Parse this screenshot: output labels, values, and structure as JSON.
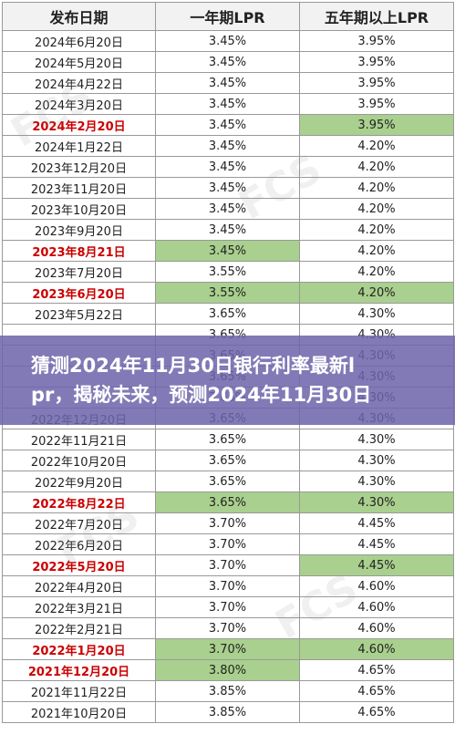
{
  "table": {
    "headers": [
      "发布日期",
      "一年期LPR",
      "五年期以上LPR"
    ],
    "rows": [
      {
        "date": "2024年6月20日",
        "one_year": "3.45%",
        "five_year": "3.95%",
        "date_red": false,
        "one_green": false,
        "five_green": false
      },
      {
        "date": "2024年5月20日",
        "one_year": "3.45%",
        "five_year": "3.95%",
        "date_red": false,
        "one_green": false,
        "five_green": false
      },
      {
        "date": "2024年4月22日",
        "one_year": "3.45%",
        "five_year": "3.95%",
        "date_red": false,
        "one_green": false,
        "five_green": false
      },
      {
        "date": "2024年3月20日",
        "one_year": "3.45%",
        "five_year": "3.95%",
        "date_red": false,
        "one_green": false,
        "five_green": false
      },
      {
        "date": "2024年2月20日",
        "one_year": "3.45%",
        "five_year": "3.95%",
        "date_red": true,
        "one_green": false,
        "five_green": true
      },
      {
        "date": "2024年1月22日",
        "one_year": "3.45%",
        "five_year": "4.20%",
        "date_red": false,
        "one_green": false,
        "five_green": false
      },
      {
        "date": "2023年12月20日",
        "one_year": "3.45%",
        "five_year": "4.20%",
        "date_red": false,
        "one_green": false,
        "five_green": false
      },
      {
        "date": "2023年11月20日",
        "one_year": "3.45%",
        "five_year": "4.20%",
        "date_red": false,
        "one_green": false,
        "five_green": false
      },
      {
        "date": "2023年10月20日",
        "one_year": "3.45%",
        "five_year": "4.20%",
        "date_red": false,
        "one_green": false,
        "five_green": false
      },
      {
        "date": "2023年9月20日",
        "one_year": "3.45%",
        "five_year": "4.20%",
        "date_red": false,
        "one_green": false,
        "five_green": false
      },
      {
        "date": "2023年8月21日",
        "one_year": "3.45%",
        "five_year": "4.20%",
        "date_red": true,
        "one_green": true,
        "five_green": false
      },
      {
        "date": "2023年7月20日",
        "one_year": "3.55%",
        "five_year": "4.20%",
        "date_red": false,
        "one_green": false,
        "five_green": false
      },
      {
        "date": "2023年6月20日",
        "one_year": "3.55%",
        "five_year": "4.20%",
        "date_red": true,
        "one_green": true,
        "five_green": true
      },
      {
        "date": "2023年5月22日",
        "one_year": "3.65%",
        "five_year": "4.30%",
        "date_red": false,
        "one_green": false,
        "five_green": false
      },
      {
        "date": "",
        "one_year": "3.65%",
        "five_year": "4.30%",
        "date_red": false,
        "one_green": false,
        "five_green": false
      },
      {
        "date": "",
        "one_year": "3.65%",
        "five_year": "4.30%",
        "date_red": false,
        "one_green": false,
        "five_green": false
      },
      {
        "date": "",
        "one_year": "3.65%",
        "five_year": "4.30%",
        "date_red": false,
        "one_green": false,
        "five_green": false
      },
      {
        "date": "",
        "one_year": "3.65%",
        "five_year": "4.30%",
        "date_red": false,
        "one_green": false,
        "five_green": false
      },
      {
        "date": "2022年12月20日",
        "one_year": "3.65%",
        "five_year": "4.30%",
        "date_red": false,
        "one_green": false,
        "five_green": false
      },
      {
        "date": "2022年11月21日",
        "one_year": "3.65%",
        "five_year": "4.30%",
        "date_red": false,
        "one_green": false,
        "five_green": false
      },
      {
        "date": "2022年10月20日",
        "one_year": "3.65%",
        "five_year": "4.30%",
        "date_red": false,
        "one_green": false,
        "five_green": false
      },
      {
        "date": "2022年9月20日",
        "one_year": "3.65%",
        "five_year": "4.30%",
        "date_red": false,
        "one_green": false,
        "five_green": false
      },
      {
        "date": "2022年8月22日",
        "one_year": "3.65%",
        "five_year": "4.30%",
        "date_red": true,
        "one_green": true,
        "five_green": true
      },
      {
        "date": "2022年7月20日",
        "one_year": "3.70%",
        "five_year": "4.45%",
        "date_red": false,
        "one_green": false,
        "five_green": false
      },
      {
        "date": "2022年6月20日",
        "one_year": "3.70%",
        "five_year": "4.45%",
        "date_red": false,
        "one_green": false,
        "five_green": false
      },
      {
        "date": "2022年5月20日",
        "one_year": "3.70%",
        "five_year": "4.45%",
        "date_red": true,
        "one_green": false,
        "five_green": true
      },
      {
        "date": "2022年4月20日",
        "one_year": "3.70%",
        "five_year": "4.60%",
        "date_red": false,
        "one_green": false,
        "five_green": false
      },
      {
        "date": "2022年3月21日",
        "one_year": "3.70%",
        "five_year": "4.60%",
        "date_red": false,
        "one_green": false,
        "five_green": false
      },
      {
        "date": "2022年2月21日",
        "one_year": "3.70%",
        "five_year": "4.60%",
        "date_red": false,
        "one_green": false,
        "five_green": false
      },
      {
        "date": "2022年1月20日",
        "one_year": "3.70%",
        "five_year": "4.60%",
        "date_red": true,
        "one_green": true,
        "five_green": true
      },
      {
        "date": "2021年12月20日",
        "one_year": "3.80%",
        "five_year": "4.65%",
        "date_red": true,
        "one_green": true,
        "five_green": false
      },
      {
        "date": "2021年11月22日",
        "one_year": "3.85%",
        "five_year": "4.65%",
        "date_red": false,
        "one_green": false,
        "five_green": false
      },
      {
        "date": "2021年10月20日",
        "one_year": "3.85%",
        "five_year": "4.65%",
        "date_red": false,
        "one_green": false,
        "five_green": false
      }
    ]
  },
  "banner": {
    "line1": "猜测2024年11月30日银行利率最新l",
    "line2": "pr，揭秘未来，预测2024年11月30日"
  },
  "colors": {
    "highlight_green": "#a9d08e",
    "date_red": "#cc0000",
    "banner_bg": "#6e64aa"
  }
}
